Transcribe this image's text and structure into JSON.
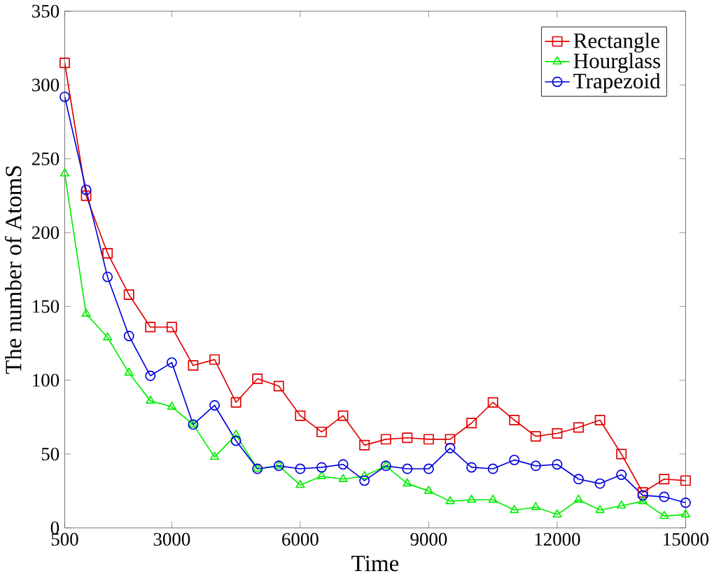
{
  "chart_data": {
    "type": "line",
    "xlabel": "Time",
    "ylabel": "The number of AtomS",
    "x": [
      500,
      1000,
      1500,
      2000,
      2500,
      3000,
      3500,
      4000,
      4500,
      5000,
      5500,
      6000,
      6500,
      7000,
      7500,
      8000,
      8500,
      9000,
      9500,
      10000,
      10500,
      11000,
      11500,
      12000,
      12500,
      13000,
      13500,
      14000,
      14500,
      15000
    ],
    "series": [
      {
        "name": "Rectangle",
        "color": "#e00000",
        "marker": "square",
        "values": [
          315,
          225,
          186,
          158,
          136,
          136,
          110,
          114,
          85,
          101,
          96,
          76,
          65,
          76,
          56,
          60,
          61,
          60,
          60,
          71,
          85,
          73,
          62,
          64,
          68,
          73,
          50,
          24,
          33,
          32
        ]
      },
      {
        "name": "Hourglass",
        "color": "#00ee00",
        "marker": "triangle",
        "values": [
          240,
          145,
          129,
          105,
          86,
          82,
          70,
          48,
          63,
          40,
          42,
          29,
          35,
          33,
          35,
          42,
          30,
          25,
          18,
          19,
          19,
          12,
          14,
          9,
          19,
          12,
          15,
          18,
          8,
          9
        ]
      },
      {
        "name": "Trapezoid",
        "color": "#0000dd",
        "marker": "circle",
        "values": [
          292,
          229,
          170,
          130,
          103,
          112,
          70,
          83,
          59,
          40,
          42,
          40,
          41,
          43,
          32,
          42,
          40,
          40,
          54,
          41,
          40,
          46,
          42,
          43,
          33,
          30,
          36,
          22,
          21,
          17
        ]
      }
    ],
    "xlim": [
      500,
      15000
    ],
    "ylim": [
      0,
      350
    ],
    "xticks": [
      500,
      3000,
      6000,
      9000,
      12000,
      15000
    ],
    "yticks": [
      0,
      50,
      100,
      150,
      200,
      250,
      300,
      350
    ],
    "legend": "top right",
    "grid": false,
    "line_style": "solid"
  }
}
